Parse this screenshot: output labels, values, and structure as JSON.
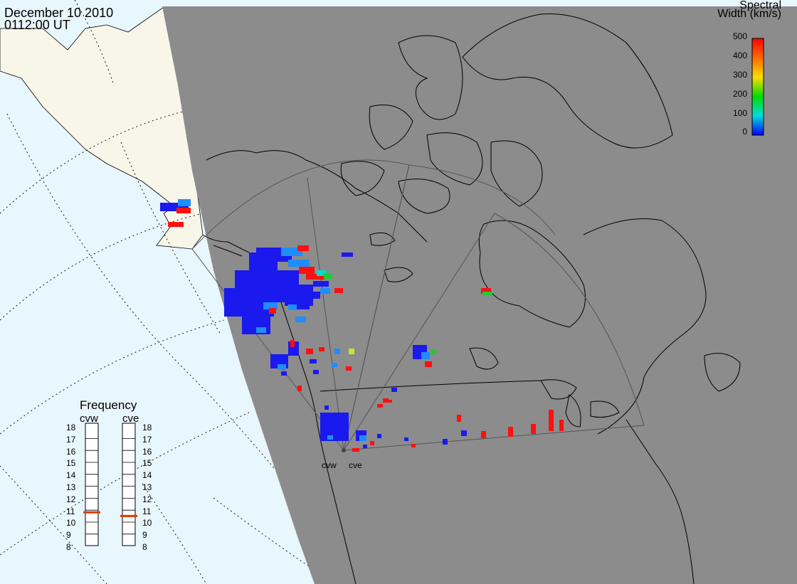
{
  "header": {
    "date": "December 10 2010",
    "time": "0112:00 UT"
  },
  "colorbar": {
    "title_line1": "Spectral",
    "title_line2": "Width (km/s)",
    "ticks": [
      "500",
      "400",
      "300",
      "200",
      "100",
      "0"
    ],
    "colors": [
      "#ff0000",
      "#ff8800",
      "#ffdd00",
      "#00dd00",
      "#00dddd",
      "#0000ff"
    ]
  },
  "frequency_panel": {
    "title": "Frequency",
    "radars": [
      "cvw",
      "cve"
    ],
    "scale": [
      "18",
      "17",
      "16",
      "15",
      "14",
      "13",
      "12",
      "11",
      "10",
      "9",
      "8"
    ],
    "cvw_frequency_mhz": 10.9,
    "cve_frequency_mhz": 10.6
  },
  "sites": {
    "west_label": "cvw",
    "east_label": "cve"
  },
  "colors": {
    "night_shading": "#8c8c8c",
    "ocean": "#e8f6fd",
    "land_day": "#f7f6e9",
    "frequency_marker": "#e03a00"
  }
}
